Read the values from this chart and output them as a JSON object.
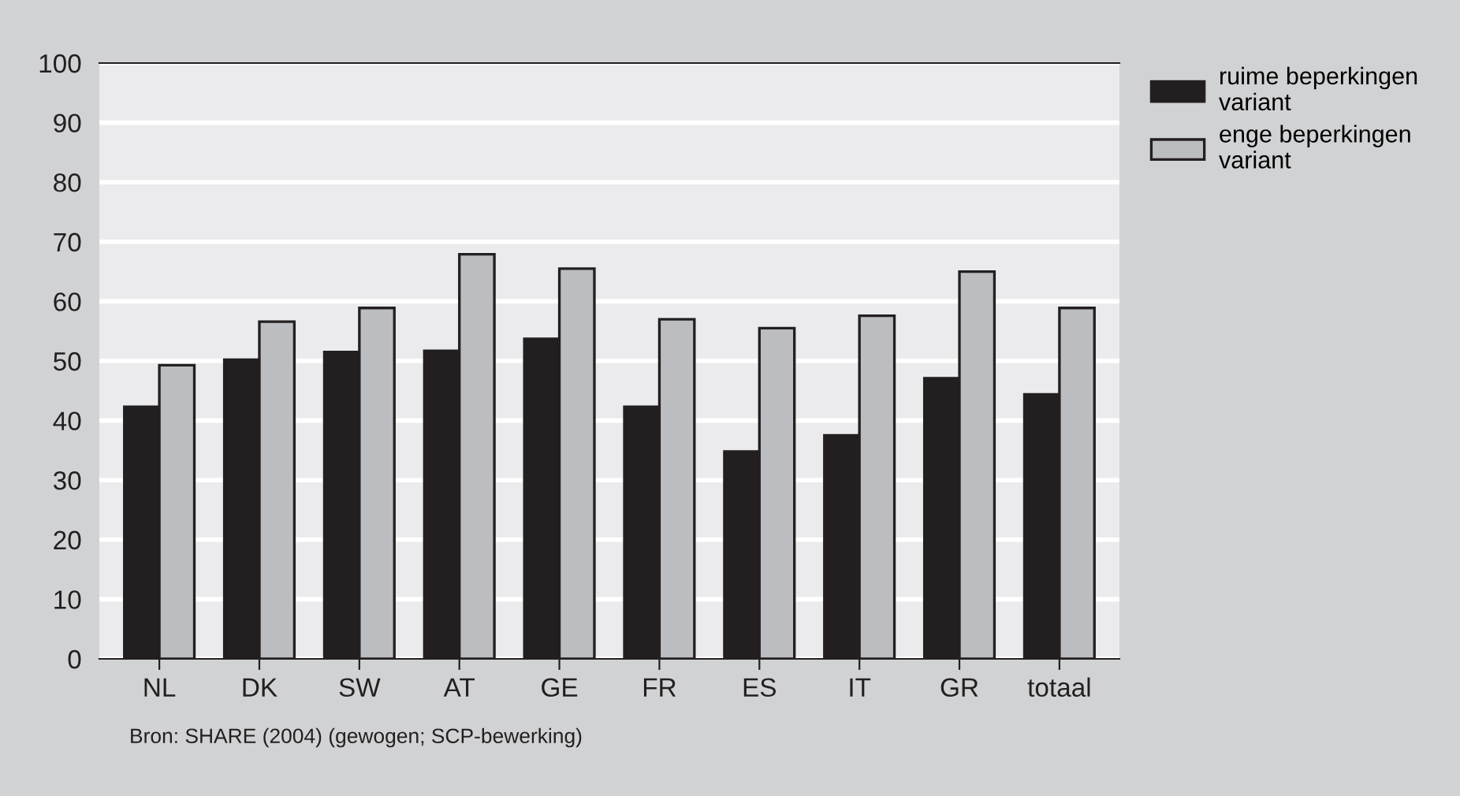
{
  "chart_data": {
    "type": "bar",
    "categories": [
      "NL",
      "DK",
      "SW",
      "AT",
      "GE",
      "FR",
      "ES",
      "IT",
      "GR",
      "totaal"
    ],
    "series": [
      {
        "name": "ruime beperkingen variant",
        "color": "#231f20",
        "values": [
          42.3,
          50.2,
          51.5,
          51.7,
          53.7,
          42.3,
          34.8,
          37.5,
          47.1,
          44.4
        ]
      },
      {
        "name": "enge beperkingen variant",
        "color": "#bcbdc0",
        "values": [
          49.3,
          56.6,
          58.9,
          67.9,
          65.5,
          57.0,
          55.5,
          57.6,
          65.0,
          58.9
        ]
      }
    ],
    "ylim": [
      0,
      100
    ],
    "yticks": [
      0,
      10,
      20,
      30,
      40,
      50,
      60,
      70,
      80,
      90,
      100
    ],
    "grid": "y",
    "legend": "top right",
    "annotations": [
      "Bron: SHARE (2004) (gewogen; SCP-bewerking)"
    ]
  }
}
